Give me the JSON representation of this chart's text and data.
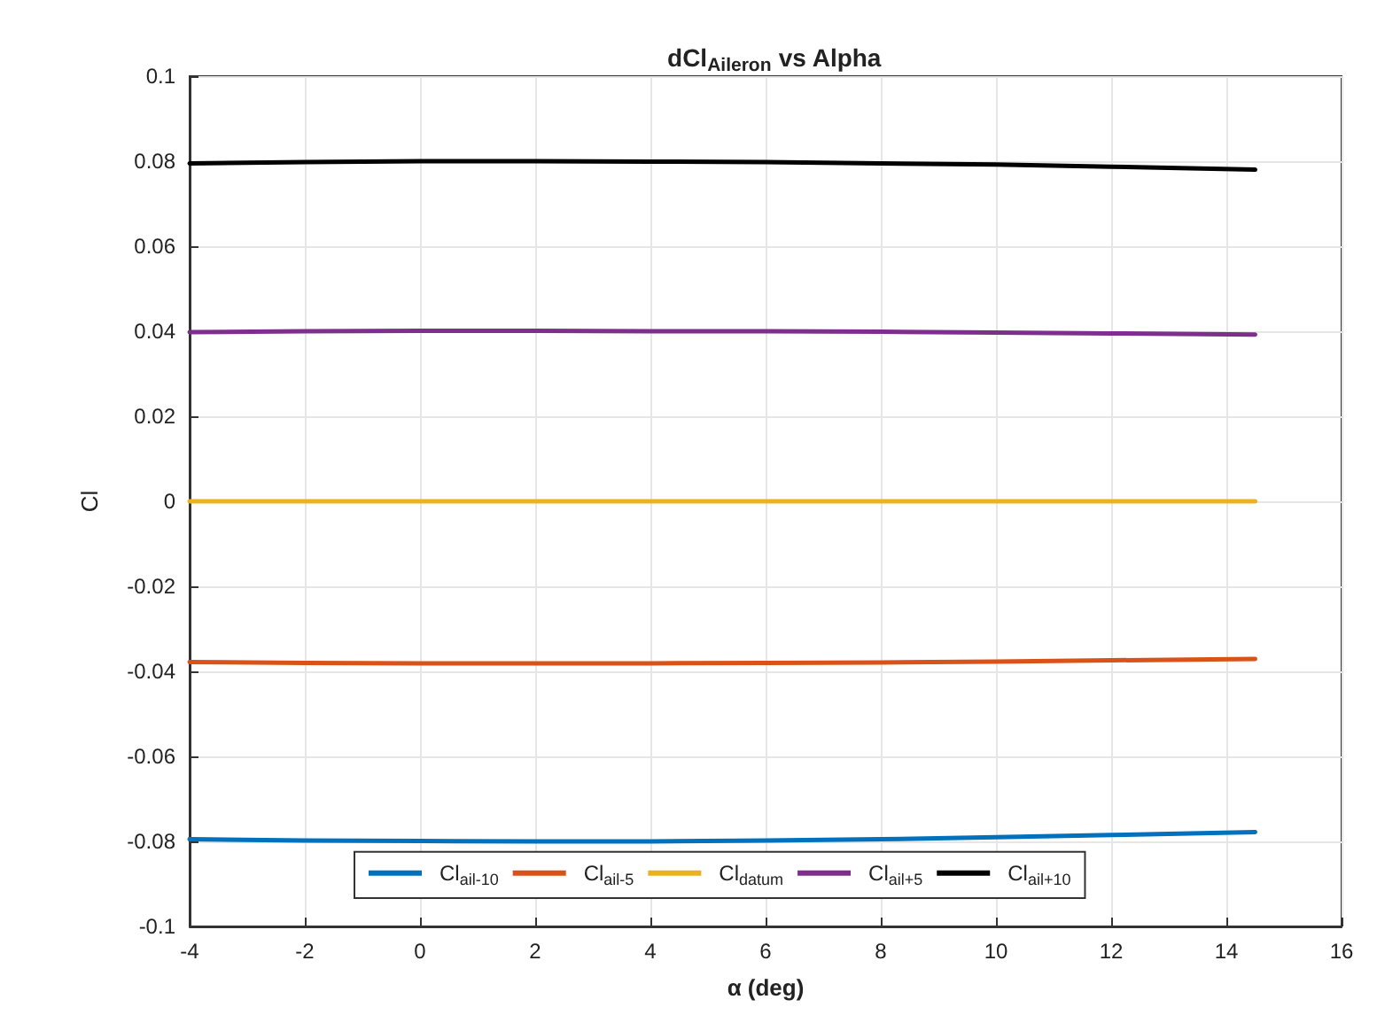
{
  "chart_data": {
    "type": "line",
    "title": "dCl$_{Aileron}$ vs Alpha",
    "xlabel": "α (deg)",
    "ylabel": "Cl",
    "x": [
      -4,
      -2,
      0,
      2,
      4,
      6,
      8,
      10,
      12,
      14.5
    ],
    "series": [
      {
        "name": "Cl$_{ail-10}$",
        "color": "#0072bd",
        "values": [
          -0.0795,
          -0.0798,
          -0.0799,
          -0.08,
          -0.08,
          -0.0798,
          -0.0795,
          -0.079,
          -0.0785,
          -0.0778
        ]
      },
      {
        "name": "Cl$_{ail-5}$",
        "color": "#d95319",
        "values": [
          -0.0378,
          -0.038,
          -0.0381,
          -0.0381,
          -0.0381,
          -0.038,
          -0.0379,
          -0.0377,
          -0.0374,
          -0.0371
        ]
      },
      {
        "name": "Cl$_{datum}$",
        "color": "#edb120",
        "values": [
          0,
          0,
          0,
          0,
          0,
          0,
          0,
          0,
          0,
          0
        ]
      },
      {
        "name": "Cl$_{ail+5}$",
        "color": "#7e2f8e",
        "values": [
          0.0398,
          0.04,
          0.0401,
          0.0401,
          0.04,
          0.04,
          0.0399,
          0.0397,
          0.0395,
          0.0392
        ]
      },
      {
        "name": "Cl$_{ail+10}$",
        "color": "#000000",
        "values": [
          0.0795,
          0.0798,
          0.08,
          0.08,
          0.0799,
          0.0798,
          0.0795,
          0.0792,
          0.0787,
          0.078
        ]
      }
    ],
    "xlim": [
      -4,
      16
    ],
    "xticks": [
      -4,
      -2,
      0,
      2,
      4,
      6,
      8,
      10,
      12,
      14,
      16
    ],
    "ylim": [
      -0.1,
      0.1
    ],
    "yticks": [
      -0.1,
      -0.08,
      -0.06,
      -0.04,
      -0.02,
      0,
      0.02,
      0.04,
      0.06,
      0.08,
      0.1
    ],
    "grid": true,
    "legend": "bottom",
    "marker": "none",
    "line_style": "solid"
  }
}
